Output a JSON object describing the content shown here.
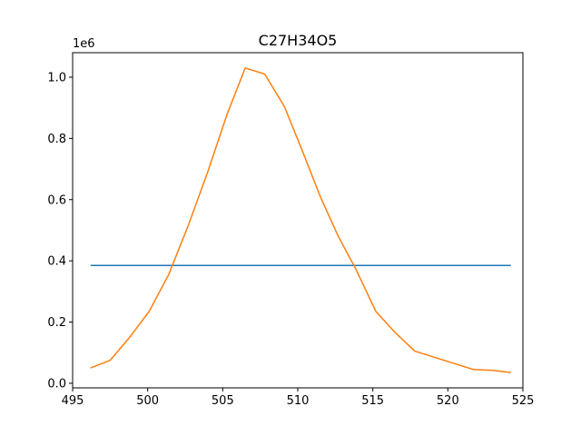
{
  "chart_data": {
    "type": "line",
    "title": "C27H34O5",
    "xlabel": "",
    "ylabel": "",
    "y_offset_label": "1e6",
    "xlim": [
      495,
      525
    ],
    "ylim": [
      -15000,
      1080000
    ],
    "x_ticks": [
      495,
      500,
      505,
      510,
      515,
      520,
      525
    ],
    "x_tick_labels": [
      "495",
      "500",
      "505",
      "510",
      "515",
      "520",
      "525"
    ],
    "y_ticks": [
      0,
      200000,
      400000,
      600000,
      800000,
      1000000
    ],
    "y_tick_labels": [
      "0.0",
      "0.2",
      "0.4",
      "0.6",
      "0.8",
      "1.0"
    ],
    "grid": false,
    "series": [
      {
        "color": "#1f77b4",
        "x": [
          496.2,
          524.2
        ],
        "y": [
          385000,
          385000
        ]
      },
      {
        "color": "#ff7f0e",
        "x": [
          496.2,
          497.5,
          498.8,
          500.1,
          501.4,
          502.7,
          504.0,
          505.3,
          506.5,
          507.8,
          509.1,
          510.3,
          511.5,
          512.7,
          513.9,
          515.2,
          516.5,
          517.8,
          519.1,
          520.4,
          521.7,
          523.0,
          524.2
        ],
        "y": [
          50000,
          75000,
          150000,
          235000,
          355000,
          515000,
          690000,
          880000,
          1030000,
          1010000,
          905000,
          760000,
          610000,
          480000,
          370000,
          235000,
          165000,
          105000,
          85000,
          65000,
          45000,
          42000,
          35000
        ]
      }
    ]
  }
}
